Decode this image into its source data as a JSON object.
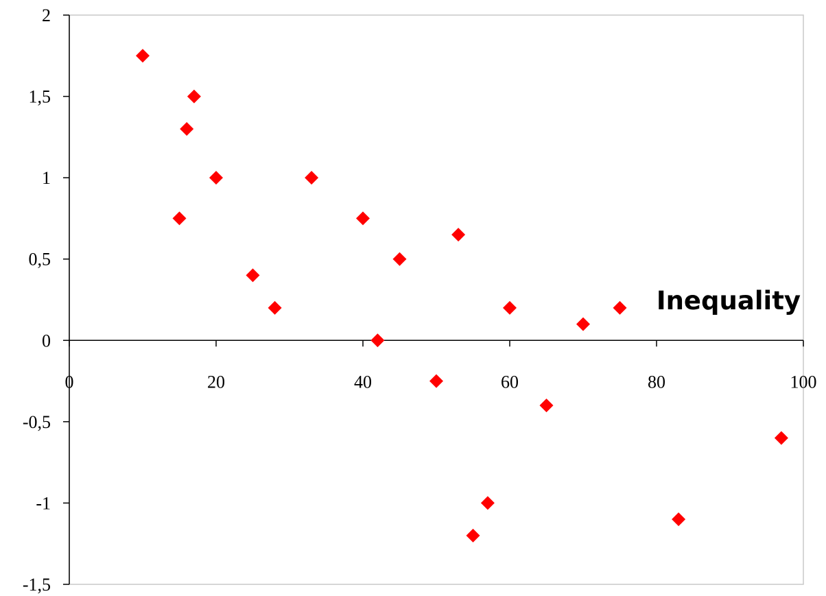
{
  "chart_data": {
    "type": "scatter",
    "title": "",
    "xlabel": "",
    "ylabel": "",
    "xlim": [
      0,
      100
    ],
    "ylim": [
      -1.5,
      2
    ],
    "x_ticks": [
      0,
      20,
      40,
      60,
      80,
      100
    ],
    "x_tick_labels": [
      "0",
      "20",
      "40",
      "60",
      "80",
      "100"
    ],
    "y_ticks": [
      -1.5,
      -1,
      -0.5,
      0,
      0.5,
      1,
      1.5,
      2
    ],
    "y_tick_labels": [
      "-1,5",
      "-1",
      "-0,5",
      "0",
      "0,5",
      "1",
      "1,5",
      "2"
    ],
    "grid": false,
    "marker": "diamond",
    "color": "#ff0000",
    "annotation": "Inequality",
    "series": [
      {
        "points": [
          {
            "x": 10,
            "y": 1.75
          },
          {
            "x": 17,
            "y": 1.5
          },
          {
            "x": 16,
            "y": 1.3
          },
          {
            "x": 20,
            "y": 1.0
          },
          {
            "x": 33,
            "y": 1.0
          },
          {
            "x": 15,
            "y": 0.75
          },
          {
            "x": 40,
            "y": 0.75
          },
          {
            "x": 53,
            "y": 0.65
          },
          {
            "x": 45,
            "y": 0.5
          },
          {
            "x": 25,
            "y": 0.4
          },
          {
            "x": 28,
            "y": 0.2
          },
          {
            "x": 60,
            "y": 0.2
          },
          {
            "x": 75,
            "y": 0.2
          },
          {
            "x": 70,
            "y": 0.1
          },
          {
            "x": 42,
            "y": 0.0
          },
          {
            "x": 50,
            "y": -0.25
          },
          {
            "x": 65,
            "y": -0.4
          },
          {
            "x": 97,
            "y": -0.6
          },
          {
            "x": 57,
            "y": -1.0
          },
          {
            "x": 83,
            "y": -1.1
          },
          {
            "x": 55,
            "y": -1.2
          }
        ]
      }
    ]
  }
}
